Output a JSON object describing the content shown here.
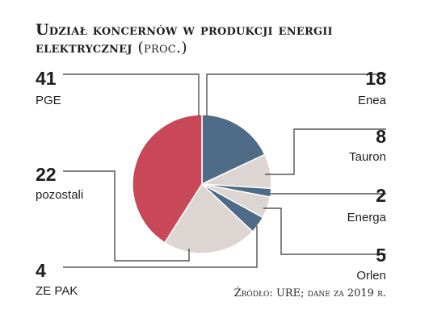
{
  "chart_data": {
    "type": "pie",
    "title": "Udział koncernów w produkcji energii elektrycznej",
    "title_line1": "Udział koncernów w produkcji energii",
    "title_line2": "elektrycznej",
    "unit": "(proc.)",
    "source": "Źródło: URE; dane za 2019 r.",
    "legend": "none",
    "slices": [
      {
        "label": "Enea",
        "value": 18,
        "color": "#4f6b88"
      },
      {
        "label": "Tauron",
        "value": 8,
        "color": "#ddd5d2"
      },
      {
        "label": "Energa",
        "value": 2,
        "color": "#4f6b88"
      },
      {
        "label": "Orlen",
        "value": 5,
        "color": "#ddd5d2"
      },
      {
        "label": "ZE PAK",
        "value": 4,
        "color": "#4f6b88"
      },
      {
        "label": "pozostali",
        "value": 22,
        "color": "#ddd5d2"
      },
      {
        "label": "PGE",
        "value": 41,
        "color": "#c94858"
      }
    ]
  }
}
